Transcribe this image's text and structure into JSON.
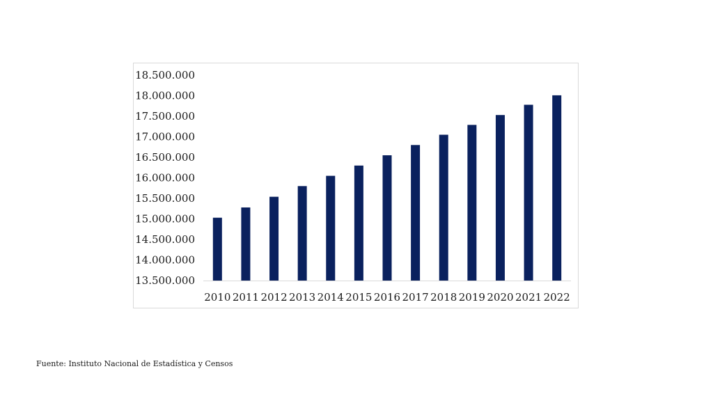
{
  "colors": {
    "bar": "#0a215e",
    "axis": "#d9d9d9",
    "text": "#1a1a1a"
  },
  "source_note": "Fuente: Instituto Nacional de Estadística y Censos",
  "chart_data": {
    "type": "bar",
    "title": "",
    "xlabel": "",
    "ylabel": "",
    "grid": false,
    "legend": "none",
    "categories": [
      "2010",
      "2011",
      "2012",
      "2013",
      "2014",
      "2015",
      "2016",
      "2017",
      "2018",
      "2019",
      "2020",
      "2021",
      "2022"
    ],
    "values": [
      15030000,
      15280000,
      15540000,
      15800000,
      16050000,
      16300000,
      16550000,
      16800000,
      17050000,
      17290000,
      17530000,
      17780000,
      18010000
    ],
    "ylim": [
      13500000,
      18500000
    ],
    "yticks": [
      13500000,
      14000000,
      14500000,
      15000000,
      15500000,
      16000000,
      16500000,
      17000000,
      17500000,
      18000000,
      18500000
    ],
    "ytick_labels": [
      "13.500.000",
      "14.000.000",
      "14.500.000",
      "15.000.000",
      "15.500.000",
      "16.000.000",
      "16.500.000",
      "17.000.000",
      "17.500.000",
      "18.000.000",
      "18.500.000"
    ]
  }
}
